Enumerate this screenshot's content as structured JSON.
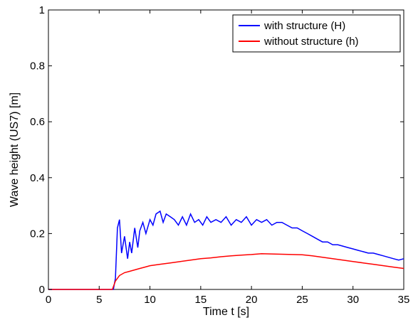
{
  "chart_data": {
    "type": "line",
    "title": "",
    "xlabel": "Time  t  [s]",
    "ylabel": "Wave height (US7)  [m]",
    "xlim": [
      0,
      35
    ],
    "ylim": [
      0,
      1
    ],
    "xticks": [
      0,
      5,
      10,
      15,
      20,
      25,
      30,
      35
    ],
    "yticks": [
      0,
      0.2,
      0.4,
      0.6,
      0.8,
      1
    ],
    "xtick_labels": [
      "0",
      "5",
      "10",
      "15",
      "20",
      "25",
      "30",
      "35"
    ],
    "ytick_labels": [
      "0",
      "0.2",
      "0.4",
      "0.6",
      "0.8",
      "1"
    ],
    "grid": false,
    "legend_position": "top-right",
    "series": [
      {
        "name": "with structure (H)",
        "color": "#0000ff",
        "x": [
          0,
          6.4,
          6.6,
          6.8,
          7.0,
          7.2,
          7.5,
          7.8,
          8.0,
          8.2,
          8.5,
          8.8,
          9.0,
          9.3,
          9.6,
          10.0,
          10.3,
          10.6,
          11.0,
          11.3,
          11.6,
          12.0,
          12.4,
          12.8,
          13.2,
          13.6,
          14.0,
          14.4,
          14.8,
          15.2,
          15.6,
          16.0,
          16.5,
          17.0,
          17.5,
          18.0,
          18.5,
          19.0,
          19.5,
          20.0,
          20.5,
          21.0,
          21.5,
          22.0,
          22.5,
          23.0,
          23.5,
          24.0,
          24.5,
          25.0,
          25.5,
          26.0,
          26.5,
          27.0,
          27.5,
          28.0,
          28.5,
          29.0,
          29.5,
          30.0,
          30.5,
          31.0,
          31.5,
          32.0,
          32.5,
          33.0,
          33.5,
          34.0,
          34.5,
          35.0
        ],
        "y": [
          0,
          0,
          0.04,
          0.22,
          0.25,
          0.13,
          0.19,
          0.11,
          0.17,
          0.13,
          0.22,
          0.15,
          0.21,
          0.24,
          0.2,
          0.25,
          0.23,
          0.27,
          0.28,
          0.24,
          0.27,
          0.26,
          0.25,
          0.23,
          0.26,
          0.23,
          0.27,
          0.24,
          0.25,
          0.23,
          0.26,
          0.24,
          0.25,
          0.24,
          0.26,
          0.23,
          0.25,
          0.24,
          0.26,
          0.23,
          0.25,
          0.24,
          0.25,
          0.23,
          0.24,
          0.24,
          0.23,
          0.22,
          0.22,
          0.21,
          0.2,
          0.19,
          0.18,
          0.17,
          0.17,
          0.16,
          0.16,
          0.155,
          0.15,
          0.145,
          0.14,
          0.135,
          0.13,
          0.13,
          0.125,
          0.12,
          0.115,
          0.11,
          0.105,
          0.11
        ]
      },
      {
        "name": "without structure (h)",
        "color": "#ff0000",
        "x": [
          0,
          6.3,
          6.6,
          7.0,
          7.5,
          8.0,
          8.5,
          9.0,
          9.5,
          10.0,
          11.0,
          12.0,
          13.0,
          14.0,
          15.0,
          16.0,
          17.0,
          18.0,
          19.0,
          20.0,
          21.0,
          22.0,
          23.0,
          24.0,
          25.0,
          26.0,
          27.0,
          28.0,
          29.0,
          30.0,
          31.0,
          32.0,
          33.0,
          34.0,
          35.0
        ],
        "y": [
          0,
          0,
          0.03,
          0.05,
          0.06,
          0.065,
          0.07,
          0.075,
          0.08,
          0.085,
          0.09,
          0.095,
          0.1,
          0.105,
          0.11,
          0.113,
          0.117,
          0.12,
          0.123,
          0.125,
          0.128,
          0.127,
          0.126,
          0.125,
          0.124,
          0.12,
          0.115,
          0.11,
          0.105,
          0.1,
          0.095,
          0.09,
          0.085,
          0.08,
          0.075
        ]
      }
    ]
  }
}
